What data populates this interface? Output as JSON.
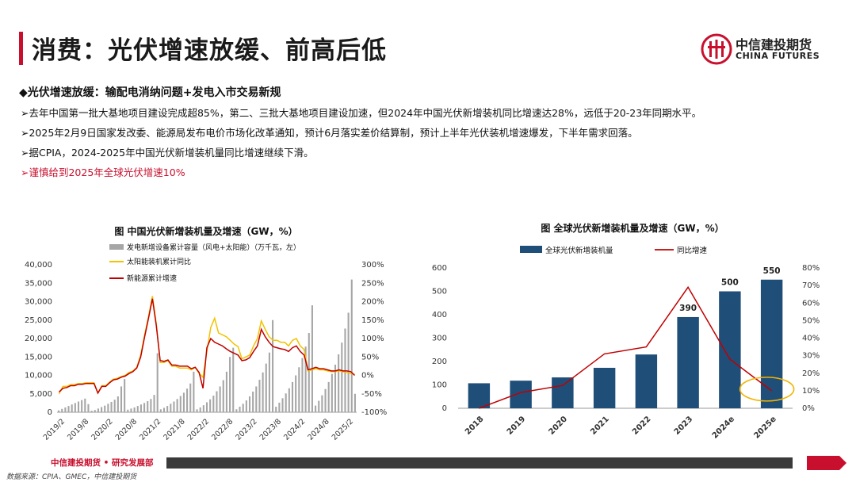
{
  "header": {
    "title": "消费：光伏增速放缓、前高后低",
    "logo_cn": "中信建投期货",
    "logo_en": "CHINA FUTURES"
  },
  "content": {
    "subhead": "◆光伏增速放缓：输配电消纳问题+发电入市交易新规",
    "bullets": [
      "➢去年中国第一批大基地项目建设完成超85%，第二、三批大基地项目建设加速，但2024年中国光伏新增装机同比增速达28%，远低于20-23年同期水平。",
      "➢2025年2月9日国家发改委、能源局发布电价市场化改革通知，预计6月落实差价结算制，预计上半年光伏装机增速爆发，下半年需求回落。",
      "➢据CPIA，2024-2025年中国光伏新增装机量同比增速继续下滑。",
      "➢谨慎给到2025年全球光伏增速10%"
    ]
  },
  "footer": {
    "label": "中信建投期货 • 研究发展部",
    "source": "数据来源：CPIA、GMEC，中信建投期货"
  },
  "colors": {
    "accent_red": "#c8102e",
    "bar_gray": "#a6a6a6",
    "line_yellow": "#f2c200",
    "line_red": "#c00000",
    "bar_navy": "#1f4e79",
    "highlight_ellipse": "#f2b400"
  },
  "chart_data": [
    {
      "type": "bar",
      "title": "图 中国光伏新增装机量及增速（GW，%）",
      "legend": [
        "发电新增设备累计容量（风电+太阳能）（万千瓦，左）",
        "太阳能装机累计同比",
        "新能源累计增速"
      ],
      "x_tick_labels": [
        "2019/2",
        "2019/8",
        "2020/2",
        "2020/8",
        "2021/2",
        "2021/8",
        "2022/2",
        "2022/8",
        "2023/2",
        "2023/8",
        "2024/2",
        "2024/8",
        "2025/2"
      ],
      "y_left_ticks": [
        "0",
        "5,000",
        "10,000",
        "15,000",
        "20,000",
        "25,000",
        "30,000",
        "35,000",
        "40,000"
      ],
      "y_right_ticks": [
        "-100%",
        "-50%",
        "0%",
        "50%",
        "100%",
        "150%",
        "200%",
        "250%",
        "300%"
      ],
      "ylim_left": [
        0,
        40000
      ],
      "ylim_right": [
        -100,
        300
      ],
      "series": [
        {
          "name": "发电新增设备累计容量（风电+太阳能）（万千瓦，左）",
          "kind": "bar",
          "axis": "left",
          "values": [
            500,
            900,
            1300,
            1700,
            2100,
            2500,
            2900,
            3300,
            3700,
            2200,
            400,
            600,
            1000,
            1400,
            1800,
            2300,
            2800,
            3400,
            4300,
            7000,
            9000,
            700,
            1000,
            1300,
            1700,
            2100,
            2500,
            3000,
            3600,
            4700,
            16000,
            800,
            1200,
            1700,
            2300,
            2900,
            3600,
            4400,
            5300,
            6400,
            7800,
            11000,
            800,
            1300,
            1900,
            2700,
            3500,
            4500,
            5700,
            7000,
            8700,
            11000,
            15000,
            17500,
            800,
            1500,
            2300,
            3200,
            4300,
            5600,
            7000,
            8800,
            10800,
            13200,
            16200,
            25000,
            1500,
            2600,
            3800,
            5100,
            6500,
            8200,
            10000,
            12200,
            14700,
            17800,
            21500,
            29000,
            1800,
            3100,
            4600,
            6300,
            8200,
            10400,
            12900,
            15700,
            18900,
            22700,
            27000,
            36000,
            5000
          ]
        },
        {
          "name": "太阳能装机累计同比",
          "kind": "line",
          "axis": "right",
          "values": [
            -50,
            -30,
            -30,
            -25,
            -25,
            -22,
            -22,
            -20,
            -20,
            -20,
            -48,
            -28,
            -28,
            -18,
            -10,
            -8,
            -3,
            0,
            8,
            12,
            22,
            55,
            110,
            160,
            215,
            140,
            35,
            35,
            40,
            25,
            25,
            20,
            20,
            20,
            15,
            22,
            5,
            -5,
            65,
            130,
            155,
            115,
            110,
            105,
            95,
            85,
            78,
            45,
            50,
            55,
            80,
            100,
            148,
            125,
            105,
            95,
            95,
            90,
            90,
            80,
            95,
            100,
            80,
            70,
            12,
            15,
            18,
            15,
            15,
            12,
            10,
            10,
            12,
            10,
            8,
            5,
            3
          ]
        },
        {
          "name": "新能源累计增速",
          "kind": "line",
          "axis": "right",
          "values": [
            -45,
            -35,
            -33,
            -28,
            -28,
            -24,
            -24,
            -22,
            -22,
            -22,
            -48,
            -30,
            -30,
            -20,
            -12,
            -10,
            -5,
            -2,
            5,
            10,
            20,
            50,
            105,
            155,
            208,
            135,
            40,
            38,
            42,
            28,
            28,
            25,
            25,
            25,
            18,
            22,
            8,
            -35,
            75,
            100,
            90,
            85,
            80,
            72,
            65,
            60,
            55,
            40,
            42,
            48,
            65,
            80,
            125,
            105,
            90,
            78,
            75,
            72,
            70,
            65,
            75,
            80,
            65,
            55,
            15,
            18,
            22,
            18,
            18,
            15,
            12,
            12,
            15,
            12,
            12,
            10,
            0
          ]
        }
      ]
    },
    {
      "type": "bar",
      "title": "图 全球光伏新增装机量及增速（GW，%）",
      "legend": [
        "全球光伏新增装机量",
        "同比增速"
      ],
      "categories": [
        "2018",
        "2019",
        "2020",
        "2021",
        "2022",
        "2023",
        "2024e",
        "2025e"
      ],
      "y_left_ticks": [
        "0",
        "100",
        "200",
        "300",
        "400",
        "500",
        "600"
      ],
      "y_right_ticks": [
        "0%",
        "10%",
        "20%",
        "30%",
        "40%",
        "50%",
        "60%",
        "70%",
        "80%"
      ],
      "ylim_left": [
        0,
        600
      ],
      "ylim_right": [
        0,
        80
      ],
      "series": [
        {
          "name": "全球光伏新增装机量",
          "kind": "bar",
          "axis": "left",
          "values": [
            107,
            118,
            132,
            173,
            230,
            390,
            500,
            550
          ]
        },
        {
          "name": "同比增速",
          "kind": "line",
          "axis": "right",
          "values": [
            0,
            9,
            13,
            31,
            35,
            69,
            28,
            10
          ]
        }
      ],
      "data_labels": [
        "390",
        "500",
        "550"
      ],
      "data_label_categories": [
        "2023",
        "2024e",
        "2025e"
      ],
      "annotation": "2025e增速圈注"
    }
  ]
}
